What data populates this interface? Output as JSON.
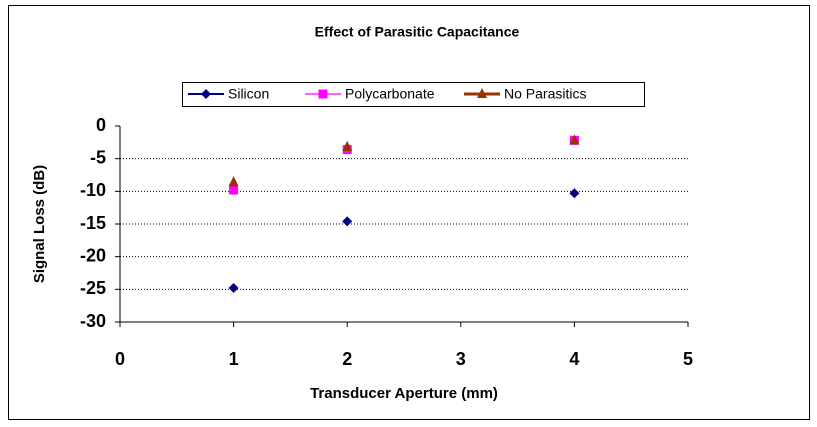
{
  "chart_data": {
    "type": "line",
    "title": "Effect of Parasitic Capacitance",
    "x_label": "Transducer Aperture (mm)",
    "y_label": "Signal Loss (dB)",
    "x": [
      1,
      2,
      4
    ],
    "series": [
      {
        "name": "Silicon",
        "color": "#000080",
        "marker": "diamond",
        "values": [
          -24.8,
          -14.6,
          -10.3
        ]
      },
      {
        "name": "Polycarbonate",
        "color": "#ff00ff",
        "marker": "square",
        "values": [
          -9.8,
          -3.6,
          -2.2
        ]
      },
      {
        "name": "No Parasitics",
        "color": "#993300",
        "marker": "triangle",
        "values": [
          -8.6,
          -3.2,
          -2.2
        ]
      }
    ],
    "xlim": [
      0,
      5
    ],
    "xticks": [
      0,
      1,
      2,
      3,
      4,
      5
    ],
    "ylim": [
      -30,
      0
    ],
    "yticks": [
      -30,
      -25,
      -20,
      -15,
      -10,
      -5,
      0
    ],
    "grid": true,
    "legend": "top"
  }
}
